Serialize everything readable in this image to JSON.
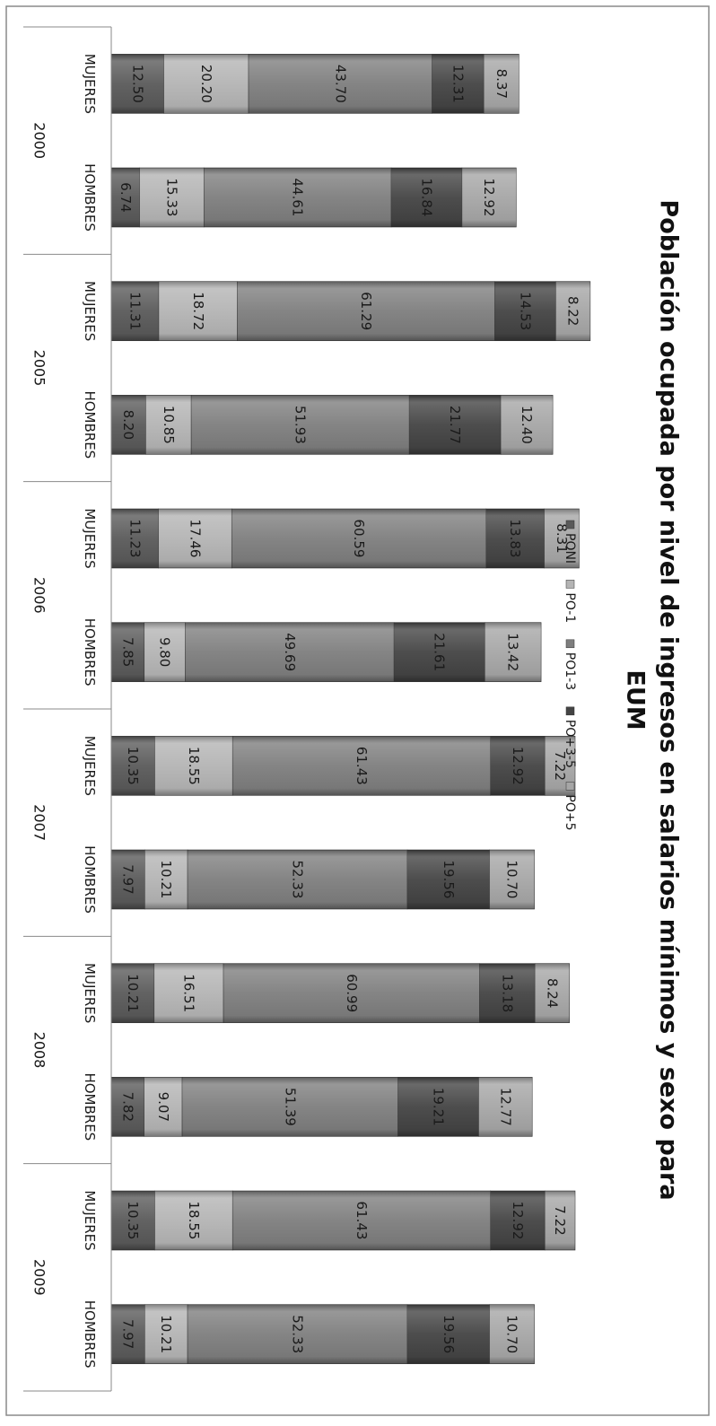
{
  "chart_data": {
    "type": "bar",
    "stacked": true,
    "title": "Población ocupada por nivel de ingresos en salarios mínimos y sexo para EUM",
    "orientation": "image rotated 90 degrees clockwise",
    "groups": [
      {
        "label": "2000",
        "categories": [
          "MUJERES",
          "HOMBRES"
        ]
      },
      {
        "label": "2005",
        "categories": [
          "MUJERES",
          "HOMBRES"
        ]
      },
      {
        "label": "2006",
        "categories": [
          "MUJERES",
          "HOMBRES"
        ]
      },
      {
        "label": "2007",
        "categories": [
          "MUJERES",
          "HOMBRES"
        ]
      },
      {
        "label": "2008",
        "categories": [
          "MUJERES",
          "HOMBRES"
        ]
      },
      {
        "label": "2009",
        "categories": [
          "MUJERES",
          "HOMBRES"
        ]
      }
    ],
    "series": [
      {
        "name": "PONI",
        "color": "#5a5a5a",
        "values": [
          12.5,
          6.74,
          11.31,
          8.2,
          11.23,
          7.85,
          10.35,
          7.97,
          10.21,
          7.82,
          10.35,
          7.97
        ]
      },
      {
        "name": "PO-1",
        "color": "#b4b4b4",
        "values": [
          20.2,
          15.33,
          18.72,
          10.85,
          17.46,
          9.8,
          18.55,
          10.21,
          16.51,
          9.07,
          18.55,
          10.21
        ]
      },
      {
        "name": "PO1-3",
        "color": "#7e7e7e",
        "values": [
          43.7,
          44.61,
          61.29,
          51.93,
          60.59,
          49.69,
          61.43,
          52.33,
          60.99,
          51.39,
          61.43,
          52.33
        ]
      },
      {
        "name": "PO+3-5",
        "color": "#444444",
        "values": [
          12.31,
          16.84,
          14.53,
          21.77,
          13.83,
          21.61,
          12.92,
          19.56,
          13.18,
          19.21,
          12.92,
          19.56
        ]
      },
      {
        "name": "PO+5",
        "color": "#a6a6a6",
        "values": [
          8.37,
          12.92,
          8.22,
          12.4,
          8.31,
          13.42,
          7.22,
          10.7,
          8.24,
          12.77,
          7.22,
          10.7
        ]
      }
    ],
    "value_labels": true,
    "legend_position": "top",
    "grid": false
  }
}
